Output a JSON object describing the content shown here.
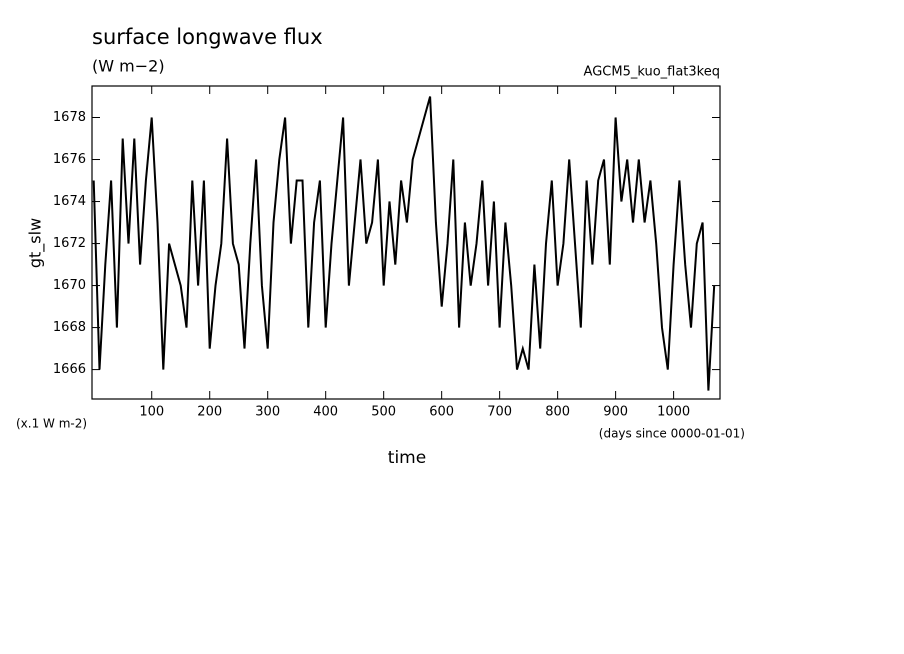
{
  "chart_data": {
    "type": "line",
    "title": "surface longwave flux",
    "subtitle": "(W m−2)",
    "annotation": "AGCM5_kuo_flat3keq",
    "y_label": "gt_slw",
    "y_unit": "(x.1 W m-2)",
    "x_unit": "(days since 0000-01-01)",
    "x_label": "time",
    "xlim": [
      -3,
      1080
    ],
    "ylim": [
      1664.6,
      1679.5
    ],
    "xticks": [
      100,
      200,
      300,
      400,
      500,
      600,
      700,
      800,
      900,
      1000
    ],
    "yticks": [
      1666,
      1668,
      1670,
      1672,
      1674,
      1676,
      1678
    ],
    "color": "#000000",
    "x": [
      0,
      10,
      20,
      30,
      40,
      50,
      60,
      70,
      80,
      90,
      100,
      110,
      120,
      130,
      140,
      150,
      160,
      170,
      180,
      190,
      200,
      210,
      220,
      230,
      240,
      250,
      260,
      270,
      280,
      290,
      300,
      310,
      320,
      330,
      340,
      350,
      360,
      370,
      380,
      390,
      400,
      410,
      420,
      430,
      440,
      450,
      460,
      470,
      480,
      490,
      500,
      510,
      520,
      530,
      540,
      550,
      560,
      570,
      580,
      590,
      600,
      610,
      620,
      630,
      640,
      650,
      660,
      670,
      680,
      690,
      700,
      710,
      720,
      730,
      740,
      750,
      760,
      770,
      780,
      790,
      800,
      810,
      820,
      830,
      840,
      850,
      860,
      870,
      880,
      890,
      900,
      910,
      920,
      930,
      940,
      950,
      960,
      970,
      980,
      990,
      1000,
      1010,
      1020,
      1030,
      1040,
      1050,
      1060,
      1070
    ],
    "values": [
      1675,
      1666,
      1671,
      1675,
      1668,
      1677,
      1672,
      1677,
      1671,
      1675,
      1678,
      1673,
      1666,
      1672,
      1671,
      1670,
      1668,
      1675,
      1670,
      1675,
      1667,
      1670,
      1672,
      1677,
      1672,
      1671,
      1667,
      1672,
      1676,
      1670,
      1667,
      1673,
      1676,
      1678,
      1672,
      1675,
      1675,
      1668,
      1673,
      1675,
      1668,
      1672,
      1675,
      1678,
      1670,
      1673,
      1676,
      1672,
      1673,
      1676,
      1670,
      1674,
      1671,
      1675,
      1673,
      1676,
      1677,
      1678,
      1679,
      1673,
      1669,
      1672,
      1676,
      1668,
      1673,
      1670,
      1672,
      1675,
      1670,
      1674,
      1668,
      1673,
      1670,
      1666,
      1667,
      1666,
      1671,
      1667,
      1672,
      1675,
      1670,
      1672,
      1676,
      1672,
      1668,
      1675,
      1671,
      1675,
      1676,
      1671,
      1678,
      1674,
      1676,
      1673,
      1676,
      1673,
      1675,
      1672,
      1668,
      1666,
      1671,
      1675,
      1671,
      1668,
      1672,
      1673,
      1665,
      1670
    ]
  }
}
